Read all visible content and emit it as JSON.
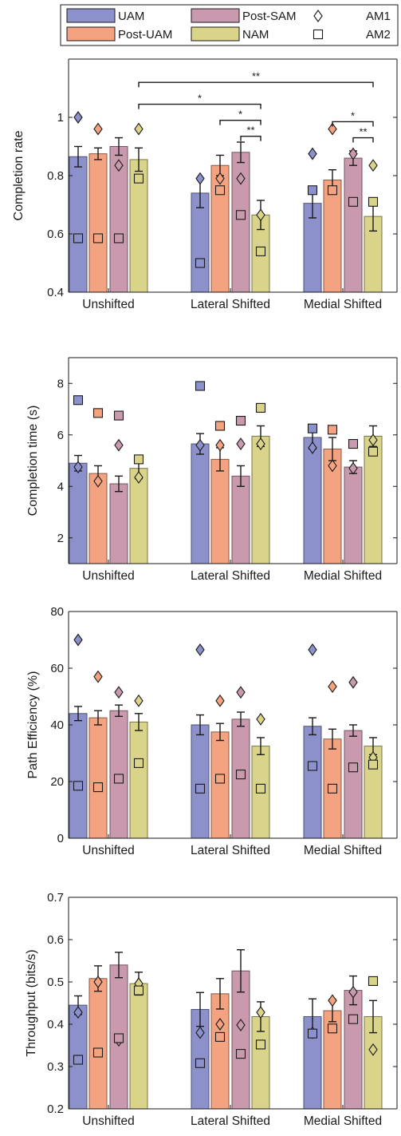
{
  "legend": {
    "items": [
      {
        "label": "UAM",
        "kind": "swatch",
        "color": "#8c91cc"
      },
      {
        "label": "Post-SAM",
        "kind": "swatch",
        "color": "#c99aad"
      },
      {
        "label": "AM1",
        "kind": "marker",
        "marker": "diamond"
      },
      {
        "label": "Post-UAM",
        "kind": "swatch",
        "color": "#f4a381"
      },
      {
        "label": "NAM",
        "kind": "swatch",
        "color": "#d9d48a"
      },
      {
        "label": "AM2",
        "kind": "marker",
        "marker": "square"
      }
    ]
  },
  "chart_data": [
    {
      "type": "bar",
      "categories": [
        "Unshifted",
        "Lateral Shifted",
        "Medial Shifted"
      ],
      "ylabel": "Completion rate",
      "ylim": [
        0.4,
        1.2
      ],
      "yticks": [
        0.4,
        0.6,
        0.8,
        1
      ],
      "yticklabels": [
        "0.4",
        "0.6",
        "0.8",
        "1"
      ],
      "series": [
        {
          "name": "UAM",
          "color": "#8c91cc",
          "values": [
            0.865,
            0.74,
            0.705
          ],
          "errors": [
            0.035,
            0.05,
            0.05
          ],
          "am1": [
            1.0,
            0.79,
            0.875
          ],
          "am2": [
            0.585,
            0.5,
            0.75
          ]
        },
        {
          "name": "Post-UAM",
          "color": "#f4a381",
          "values": [
            0.875,
            0.835,
            0.785
          ],
          "errors": [
            0.02,
            0.035,
            0.035
          ],
          "am1": [
            0.96,
            0.79,
            0.96
          ],
          "am2": [
            0.585,
            0.75,
            0.75
          ]
        },
        {
          "name": "Post-SAM",
          "color": "#c99aad",
          "values": [
            0.9,
            0.88,
            0.86
          ],
          "errors": [
            0.03,
            0.035,
            0.025
          ],
          "am1": [
            0.835,
            0.79,
            0.875
          ],
          "am2": [
            0.585,
            0.665,
            0.71
          ]
        },
        {
          "name": "NAM",
          "color": "#d9d48a",
          "values": [
            0.855,
            0.665,
            0.66
          ],
          "errors": [
            0.04,
            0.05,
            0.05
          ],
          "am1": [
            0.96,
            0.665,
            0.835
          ],
          "am2": [
            0.79,
            0.54,
            0.71
          ]
        }
      ],
      "significance": [
        {
          "label": "**",
          "from": [
            0,
            3
          ],
          "to": [
            2,
            3
          ],
          "y": 1.12
        },
        {
          "label": "*",
          "from": [
            0,
            3
          ],
          "to": [
            1,
            3
          ],
          "y": 1.045
        },
        {
          "label": "*",
          "from": [
            1,
            1
          ],
          "to": [
            1,
            3
          ],
          "y": 0.99
        },
        {
          "label": "**",
          "from": [
            1,
            2
          ],
          "to": [
            1,
            3
          ],
          "y": 0.935
        },
        {
          "label": "*",
          "from": [
            2,
            1
          ],
          "to": [
            2,
            3
          ],
          "y": 0.985
        },
        {
          "label": "**",
          "from": [
            2,
            2
          ],
          "to": [
            2,
            3
          ],
          "y": 0.93
        }
      ]
    },
    {
      "type": "bar",
      "categories": [
        "Unshifted",
        "Lateral Shifted",
        "Medial Shifted"
      ],
      "ylabel": "Completion time (s)",
      "ylim": [
        1,
        9
      ],
      "yticks": [
        2,
        4,
        6,
        8
      ],
      "yticklabels": [
        "2",
        "4",
        "6",
        "8"
      ],
      "series": [
        {
          "name": "UAM",
          "color": "#8c91cc",
          "values": [
            4.9,
            5.65,
            5.9
          ],
          "errors": [
            0.3,
            0.4,
            0.45
          ],
          "am1": [
            4.75,
            5.6,
            5.5
          ],
          "am2": [
            7.35,
            7.9,
            6.25
          ]
        },
        {
          "name": "Post-UAM",
          "color": "#f4a381",
          "values": [
            4.5,
            5.05,
            5.45
          ],
          "errors": [
            0.3,
            0.45,
            0.45
          ],
          "am1": [
            4.2,
            5.6,
            4.8
          ],
          "am2": [
            6.85,
            6.35,
            6.2
          ]
        },
        {
          "name": "Post-SAM",
          "color": "#c99aad",
          "values": [
            4.1,
            4.4,
            4.75
          ],
          "errors": [
            0.3,
            0.4,
            0.25
          ],
          "am1": [
            5.6,
            5.65,
            4.7
          ],
          "am2": [
            6.75,
            6.55,
            5.65
          ]
        },
        {
          "name": "NAM",
          "color": "#d9d48a",
          "values": [
            4.7,
            5.95,
            5.95
          ],
          "errors": [
            0.4,
            0.4,
            0.4
          ],
          "am1": [
            4.35,
            5.65,
            5.8
          ],
          "am2": [
            5.05,
            7.05,
            5.35
          ]
        }
      ]
    },
    {
      "type": "bar",
      "categories": [
        "Unshifted",
        "Lateral Shifted",
        "Medial Shifted"
      ],
      "ylabel": "Path Efficiency (%)",
      "ylim": [
        0,
        80
      ],
      "yticks": [
        0,
        20,
        40,
        60,
        80
      ],
      "yticklabels": [
        "0",
        "20",
        "40",
        "60",
        "80"
      ],
      "series": [
        {
          "name": "UAM",
          "color": "#8c91cc",
          "values": [
            44,
            40,
            39.5
          ],
          "errors": [
            2.5,
            3.5,
            3
          ],
          "am1": [
            70,
            66.5,
            66.5
          ],
          "am2": [
            18.5,
            17.5,
            25.5
          ]
        },
        {
          "name": "Post-UAM",
          "color": "#f4a381",
          "values": [
            42.5,
            37.5,
            35
          ],
          "errors": [
            2.5,
            3,
            3.5
          ],
          "am1": [
            57,
            48.5,
            53.5
          ],
          "am2": [
            18,
            21,
            17.5
          ]
        },
        {
          "name": "Post-SAM",
          "color": "#c99aad",
          "values": [
            45,
            42,
            38
          ],
          "errors": [
            2,
            2.5,
            2
          ],
          "am1": [
            51.5,
            51.5,
            55
          ],
          "am2": [
            21,
            22.5,
            25
          ]
        },
        {
          "name": "NAM",
          "color": "#d9d48a",
          "values": [
            41,
            32.5,
            32.5
          ],
          "errors": [
            3,
            3,
            3
          ],
          "am1": [
            48.5,
            42,
            28.5
          ],
          "am2": [
            26.5,
            17.5,
            26
          ]
        }
      ]
    },
    {
      "type": "bar",
      "categories": [
        "Unshifted",
        "Lateral Shifted",
        "Medial Shifted"
      ],
      "ylabel": "Throughput (bits/s)",
      "ylim": [
        0.2,
        0.7
      ],
      "yticks": [
        0.2,
        0.3,
        0.4,
        0.5,
        0.6,
        0.7
      ],
      "yticklabels": [
        "0.2",
        "0.3",
        "0.4",
        "0.5",
        "0.6",
        "0.7"
      ],
      "series": [
        {
          "name": "UAM",
          "color": "#8c91cc",
          "values": [
            0.445,
            0.435,
            0.418
          ],
          "errors": [
            0.022,
            0.04,
            0.042
          ],
          "am1": [
            0.428,
            0.38,
            0.38
          ],
          "am2": [
            0.316,
            0.308,
            0.378
          ]
        },
        {
          "name": "Post-UAM",
          "color": "#f4a381",
          "values": [
            0.508,
            0.472,
            0.432
          ],
          "errors": [
            0.03,
            0.036,
            0.026
          ],
          "am1": [
            0.5,
            0.4,
            0.456
          ],
          "am2": [
            0.333,
            0.37,
            0.39
          ]
        },
        {
          "name": "Post-SAM",
          "color": "#c99aad",
          "values": [
            0.54,
            0.526,
            0.48
          ],
          "errors": [
            0.03,
            0.05,
            0.034
          ],
          "am1": [
            0.362,
            0.398,
            0.476
          ],
          "am2": [
            0.367,
            0.33,
            0.412
          ]
        },
        {
          "name": "NAM",
          "color": "#d9d48a",
          "values": [
            0.496,
            0.418,
            0.418
          ],
          "errors": [
            0.027,
            0.035,
            0.038
          ],
          "am1": [
            0.496,
            0.428,
            0.34
          ],
          "am2": [
            0.48,
            0.352,
            0.502
          ]
        }
      ]
    }
  ]
}
